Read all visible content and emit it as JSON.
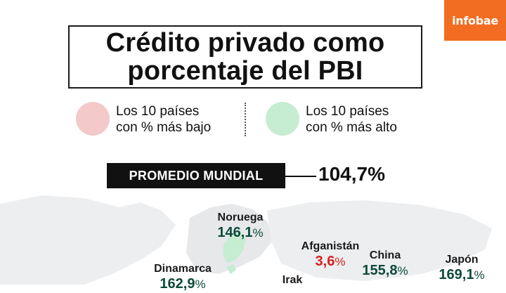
{
  "brand": "infobae",
  "title": {
    "line1": "Crédito privado como",
    "line2": "porcentaje del PBI"
  },
  "legend": {
    "low": {
      "line1": "Los 10 países",
      "line2": "con % más bajo",
      "color": "#f4c9c9"
    },
    "high": {
      "line1": "Los 10 países",
      "line2": "con % más alto",
      "color": "#c6ecd2"
    }
  },
  "average": {
    "label": "PROMEDIO MUNDIAL",
    "value": "104,7%"
  },
  "colors": {
    "high_value": "#0e4a3a",
    "low_value": "#d61f1f",
    "map_land": "#e4e6e8"
  },
  "chart_data": {
    "type": "map",
    "title": "Crédito privado como porcentaje del PBI",
    "average": {
      "label": "PROMEDIO MUNDIAL",
      "value": 104.7
    },
    "series": [
      {
        "name": "Los 10 países con % más alto",
        "points": [
          {
            "country": "Noruega",
            "value": 146.1,
            "display": "146,1",
            "unit": "%"
          },
          {
            "country": "Dinamarca",
            "value": 162.9,
            "display": "162,9",
            "unit": "%"
          },
          {
            "country": "China",
            "value": 155.8,
            "display": "155,8",
            "unit": "%"
          },
          {
            "country": "Japón",
            "value": 169.1,
            "display": "169,1",
            "unit": "%"
          }
        ]
      },
      {
        "name": "Los 10 países con % más bajo",
        "points": [
          {
            "country": "Afganistán",
            "value": 3.6,
            "display": "3,6",
            "unit": "%"
          },
          {
            "country": "Irak",
            "value": null,
            "display": "",
            "unit": ""
          }
        ]
      }
    ]
  }
}
